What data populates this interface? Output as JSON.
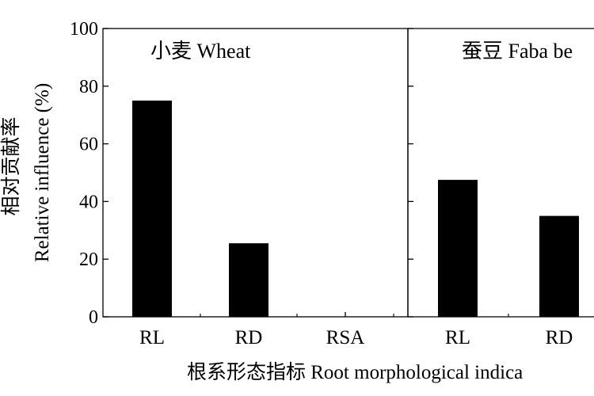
{
  "chart_data": [
    {
      "type": "bar",
      "title": "小麦 Wheat",
      "categories": [
        "RL",
        "RD",
        "RSA"
      ],
      "values": [
        75,
        25.5,
        0
      ],
      "ylim": [
        0,
        100
      ],
      "yticks": [
        0,
        20,
        40,
        60,
        80,
        100
      ],
      "ylabel_cn": "相对贡献率",
      "ylabel_en": "Relative influence (%)",
      "xlabel": "根系形态指标 Root morphological indica",
      "bar_color": "#000000",
      "grid": false
    },
    {
      "type": "bar",
      "title": "蚕豆 Faba be",
      "categories": [
        "RL",
        "RD"
      ],
      "values": [
        47.5,
        35
      ],
      "ylim": [
        0,
        100
      ],
      "bar_color": "#000000",
      "grid": false
    }
  ]
}
